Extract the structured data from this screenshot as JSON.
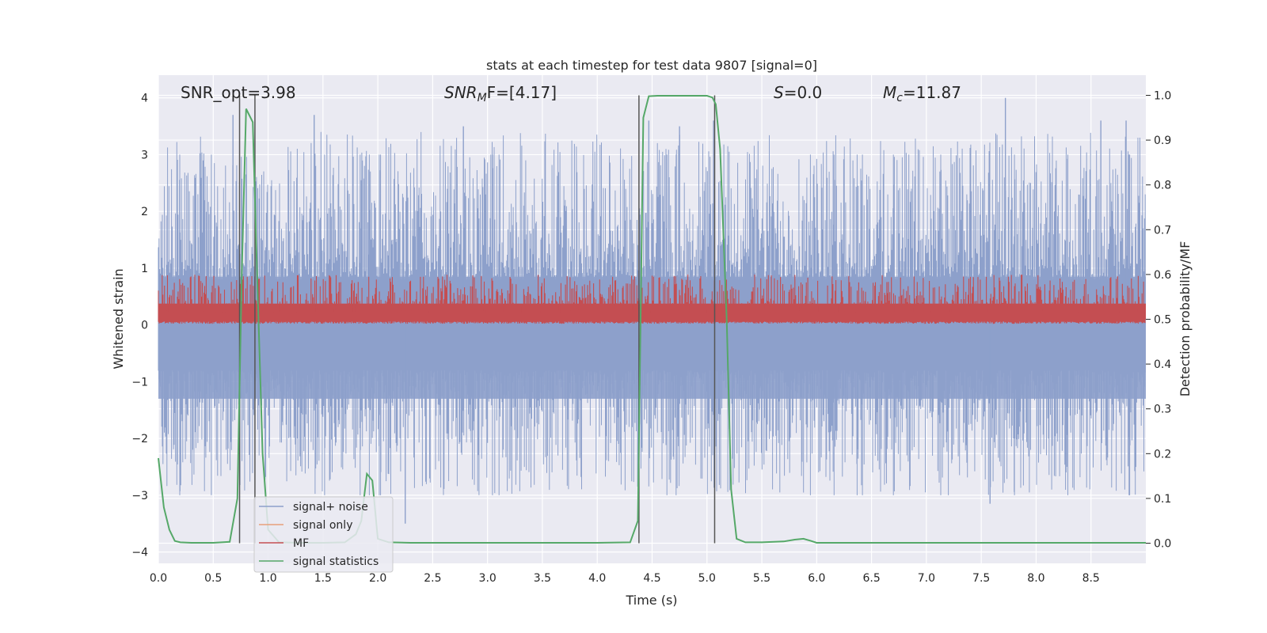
{
  "chart_data": {
    "type": "line",
    "title": "stats at each timestep for test data 9807 [signal=0]",
    "xlabel": "Time (s)",
    "ylabel_left": "Whitened strain",
    "ylabel_right": "Detection probability/MF",
    "xlim": [
      0.0,
      9.0
    ],
    "ylim_left": [
      -4.2,
      4.4
    ],
    "ylim_right": [
      -0.045,
      1.045
    ],
    "x_ticks": [
      "0.0",
      "0.5",
      "1.0",
      "1.5",
      "2.0",
      "2.5",
      "3.0",
      "3.5",
      "4.0",
      "4.5",
      "5.0",
      "5.5",
      "6.0",
      "6.5",
      "7.0",
      "7.5",
      "8.0",
      "8.5"
    ],
    "x_tick_values": [
      0.0,
      0.5,
      1.0,
      1.5,
      2.0,
      2.5,
      3.0,
      3.5,
      4.0,
      4.5,
      5.0,
      5.5,
      6.0,
      6.5,
      7.0,
      7.5,
      8.0,
      8.5
    ],
    "y_left_ticks": [
      "4",
      "3",
      "2",
      "1",
      "0",
      "−1",
      "−2",
      "−3",
      "−4"
    ],
    "y_left_tick_values": [
      4,
      3,
      2,
      1,
      0,
      -1,
      -2,
      -3,
      -4
    ],
    "y_right_ticks": [
      "1.0",
      "0.9",
      "0.8",
      "0.7",
      "0.6",
      "0.5",
      "0.4",
      "0.3",
      "0.2",
      "0.1",
      "0.0"
    ],
    "y_right_tick_values": [
      1.0,
      0.9,
      0.8,
      0.7,
      0.6,
      0.5,
      0.4,
      0.3,
      0.2,
      0.1,
      0.0
    ],
    "grid": true,
    "legend_position": "lower-left",
    "annotations": {
      "snr_opt": "SNR_opt=3.98",
      "snr_mf_main": "SNR",
      "snr_mf_sub": "M",
      "snr_mf_rest": "F=[4.17]",
      "s_main": "S",
      "s_rest": "=0.0",
      "mc_main": "M",
      "mc_sub": "c",
      "mc_rest": "=11.87"
    },
    "series": [
      {
        "name": "signal+ noise",
        "axis": "left",
        "color": "#8da0cb",
        "style": "dense-noise",
        "envelope_y_range": [
          -3.5,
          4.0
        ],
        "spike_peaks": [
          {
            "x": 0.68,
            "y": 3.7
          },
          {
            "x": 1.42,
            "y": 3.7
          },
          {
            "x": 2.78,
            "y": 3.5
          },
          {
            "x": 4.47,
            "y": 3.6
          },
          {
            "x": 4.75,
            "y": 3.5
          },
          {
            "x": 5.06,
            "y": 3.6
          },
          {
            "x": 7.72,
            "y": 4.0
          },
          {
            "x": 8.59,
            "y": 3.6
          },
          {
            "x": 8.82,
            "y": 3.6
          },
          {
            "x": 2.25,
            "y": -3.5
          },
          {
            "x": 7.58,
            "y": -3.15
          }
        ]
      },
      {
        "name": "signal only",
        "axis": "left",
        "color": "#e8a07a",
        "points": []
      },
      {
        "name": "MF",
        "axis": "right",
        "color": "#c44e52",
        "style": "dense-band",
        "band_y_range": [
          0.49,
          0.6
        ]
      },
      {
        "name": "signal statistics",
        "axis": "right",
        "color": "#55a868",
        "x": [
          0.0,
          0.05,
          0.1,
          0.15,
          0.2,
          0.3,
          0.5,
          0.65,
          0.72,
          0.76,
          0.8,
          0.86,
          0.9,
          0.95,
          1.0,
          1.1,
          1.3,
          1.5,
          1.7,
          1.8,
          1.85,
          1.9,
          1.95,
          2.0,
          2.1,
          2.3,
          2.6,
          3.0,
          3.5,
          4.0,
          4.3,
          4.37,
          4.42,
          4.47,
          4.55,
          4.7,
          5.0,
          5.05,
          5.08,
          5.12,
          5.18,
          5.22,
          5.27,
          5.35,
          5.5,
          5.7,
          5.8,
          5.88,
          5.95,
          6.0,
          6.5,
          7.0,
          7.5,
          8.0,
          8.5,
          9.0
        ],
        "y": [
          0.19,
          0.08,
          0.03,
          0.005,
          0.002,
          0.001,
          0.001,
          0.003,
          0.1,
          0.6,
          0.97,
          0.94,
          0.6,
          0.2,
          0.03,
          0.002,
          0.001,
          0.001,
          0.002,
          0.02,
          0.05,
          0.155,
          0.14,
          0.01,
          0.002,
          0.001,
          0.001,
          0.001,
          0.001,
          0.001,
          0.002,
          0.05,
          0.95,
          0.998,
          0.999,
          0.999,
          0.999,
          0.995,
          0.98,
          0.88,
          0.5,
          0.12,
          0.01,
          0.002,
          0.002,
          0.004,
          0.008,
          0.01,
          0.005,
          0.001,
          0.001,
          0.001,
          0.001,
          0.001,
          0.001,
          0.001
        ]
      }
    ],
    "vertical_lines_x": [
      0.74,
      0.88,
      4.38,
      5.07
    ]
  }
}
